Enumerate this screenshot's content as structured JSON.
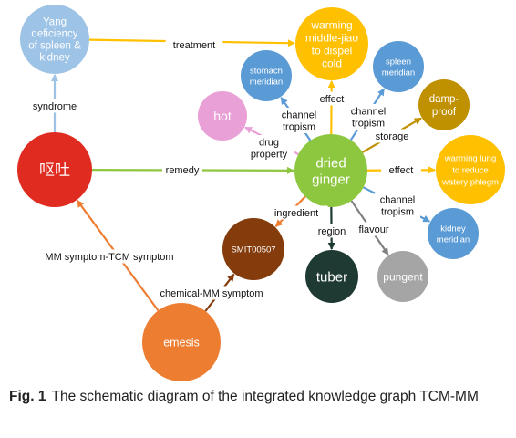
{
  "caption": {
    "figure_number": "Fig. 1",
    "text": "The schematic diagram of the integrated knowledge graph TCM-MM"
  },
  "nodes": {
    "yang": {
      "lines": [
        "Yang",
        "deficiency",
        "of spleen &",
        "kidney"
      ],
      "color": "#9dc3e6"
    },
    "warming_mj": {
      "lines": [
        "warming",
        "middle-jiao",
        "to dispel",
        "cold"
      ],
      "color": "#ffc000"
    },
    "stomach": {
      "lines": [
        "stomach",
        "meridian"
      ],
      "color": "#5b9bd5"
    },
    "spleen": {
      "lines": [
        "spleen",
        "meridian"
      ],
      "color": "#5b9bd5"
    },
    "damp": {
      "lines": [
        "damp-",
        "proof"
      ],
      "color": "#bf9000"
    },
    "hot": {
      "lines": [
        "hot"
      ],
      "color": "#e9a0d6"
    },
    "outu": {
      "lines": [
        "呕吐"
      ],
      "color": "#e02b20"
    },
    "ginger": {
      "lines": [
        "dried",
        "ginger"
      ],
      "color": "#8dc63f"
    },
    "warming_lung": {
      "lines": [
        "warming lung",
        "to reduce",
        "watery phlegm"
      ],
      "color": "#ffc000"
    },
    "kidney": {
      "lines": [
        "kidney",
        "meridian"
      ],
      "color": "#5b9bd5"
    },
    "smit": {
      "lines": [
        "SMIT00507"
      ],
      "color": "#843c0c"
    },
    "tuber": {
      "lines": [
        "tuber"
      ],
      "color": "#1f3a32"
    },
    "pungent": {
      "lines": [
        "pungent"
      ],
      "color": "#a5a5a5"
    },
    "emesis": {
      "lines": [
        "emesis"
      ],
      "color": "#ed7d31"
    }
  },
  "edges": [
    {
      "id": "treatment",
      "lines": [
        "treatment"
      ],
      "color": "#ffc000"
    },
    {
      "id": "syndrome",
      "lines": [
        "syndrome"
      ],
      "color": "#9dc3e6"
    },
    {
      "id": "remedy",
      "lines": [
        "remedy"
      ],
      "color": "#8dc63f"
    },
    {
      "id": "effect_up",
      "lines": [
        "effect"
      ],
      "color": "#ffc000"
    },
    {
      "id": "ct_stomach",
      "lines": [
        "channel",
        "tropism"
      ],
      "color": "#5b9bd5"
    },
    {
      "id": "ct_spleen",
      "lines": [
        "channel",
        "tropism"
      ],
      "color": "#5b9bd5"
    },
    {
      "id": "storage",
      "lines": [
        "storage"
      ],
      "color": "#bf9000"
    },
    {
      "id": "drug_property",
      "lines": [
        "drug",
        "property"
      ],
      "color": "#e9a0d6"
    },
    {
      "id": "effect_right",
      "lines": [
        "effect"
      ],
      "color": "#ffc000"
    },
    {
      "id": "ct_kidney",
      "lines": [
        "channel",
        "tropism"
      ],
      "color": "#5b9bd5"
    },
    {
      "id": "ingredient",
      "lines": [
        "ingredient"
      ],
      "color": "#ed7d31"
    },
    {
      "id": "region",
      "lines": [
        "region"
      ],
      "color": "#1f3a32"
    },
    {
      "id": "flavour",
      "lines": [
        "flavour"
      ],
      "color": "#808080"
    },
    {
      "id": "mm_tcm",
      "lines": [
        "MM symptom-TCM symptom"
      ],
      "color": "#ed7d31"
    },
    {
      "id": "chem_mm",
      "lines": [
        "chemical-MM symptom"
      ],
      "color": "#843c0c"
    }
  ]
}
